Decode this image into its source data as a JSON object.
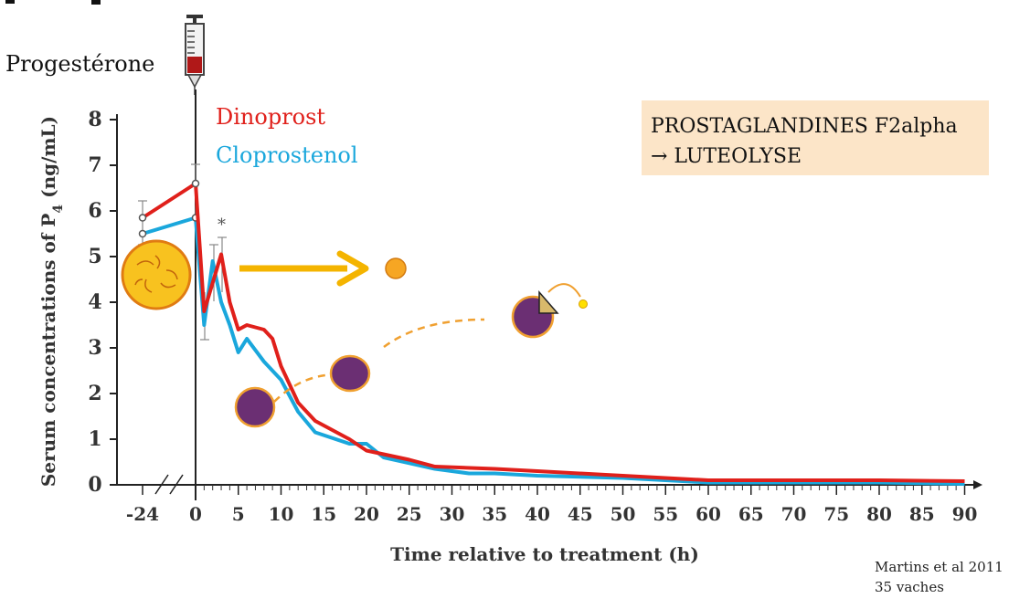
{
  "slide": {
    "hormone_label": "Progestérone",
    "info_box_line1": "PROSTAGLANDINES F2alpha",
    "info_box_line2": "→ LUTEOLYSE",
    "citation_line1": "Martins et al 2011",
    "citation_line2": "35 vaches",
    "significance_marker": "*"
  },
  "colors": {
    "dinoprost": "#e0201b",
    "cloprostenol": "#1aa7dc",
    "info_box_bg": "#fce5c8",
    "arrow": "#f4b400",
    "corpus_luteum": "#f8c21f",
    "cell_fill": "#6b2f73",
    "cell_stroke": "#f0a030"
  },
  "icons": [
    "syringe-icon",
    "corpus-luteum-icon",
    "luteal-cell-icon"
  ],
  "chart_data": {
    "type": "line",
    "xlabel": "Time relative to treatment (h)",
    "ylabel": "Serum concentrations of P4 (ng/mL)",
    "ylabel_main": "Serum concentrations of P",
    "ylabel_sub": "4",
    "ylabel_unit": " (ng/mL)",
    "xlim": [
      -24,
      90
    ],
    "ylim": [
      0,
      8
    ],
    "x_ticks": [
      -24,
      0,
      5,
      10,
      15,
      20,
      25,
      30,
      35,
      40,
      45,
      50,
      55,
      60,
      65,
      70,
      75,
      80,
      85,
      90
    ],
    "x_tick_labels": [
      "-24",
      "0",
      "5",
      "10",
      "15",
      "20",
      "25",
      "30",
      "35",
      "40",
      "45",
      "50",
      "55",
      "60",
      "65",
      "70",
      "75",
      "80",
      "85",
      "90"
    ],
    "y_ticks": [
      0,
      1,
      2,
      3,
      4,
      5,
      6,
      7,
      8
    ],
    "y_tick_labels": [
      "0",
      "1",
      "2",
      "3",
      "4",
      "5",
      "6",
      "7",
      "8"
    ],
    "treatment_time": 0,
    "axis_break": true,
    "grid": false,
    "legend": "top-left",
    "series": [
      {
        "name": "Dinoprost",
        "color": "#e0201b",
        "x": [
          -24,
          0,
          1,
          3,
          4,
          5,
          6,
          8,
          9,
          10,
          12,
          14,
          18,
          20,
          25,
          28,
          35,
          40,
          50,
          60,
          70,
          80,
          90
        ],
        "y": [
          5.85,
          6.6,
          3.8,
          5.05,
          4.0,
          3.4,
          3.5,
          3.4,
          3.2,
          2.6,
          1.8,
          1.4,
          1.0,
          0.75,
          0.55,
          0.4,
          0.35,
          0.3,
          0.2,
          0.1,
          0.1,
          0.1,
          0.08
        ]
      },
      {
        "name": "Cloprostenol",
        "color": "#1aa7dc",
        "x": [
          -24,
          0,
          1,
          2,
          3,
          4,
          5,
          6,
          8,
          10,
          12,
          14,
          18,
          20,
          22,
          28,
          32,
          35,
          40,
          50,
          60,
          70,
          80,
          90
        ],
        "y": [
          5.5,
          5.85,
          3.5,
          4.9,
          4.0,
          3.5,
          2.9,
          3.2,
          2.7,
          2.3,
          1.6,
          1.15,
          0.9,
          0.9,
          0.6,
          0.35,
          0.25,
          0.25,
          0.2,
          0.15,
          0.05,
          0.05,
          0.05,
          0.02
        ]
      }
    ]
  }
}
